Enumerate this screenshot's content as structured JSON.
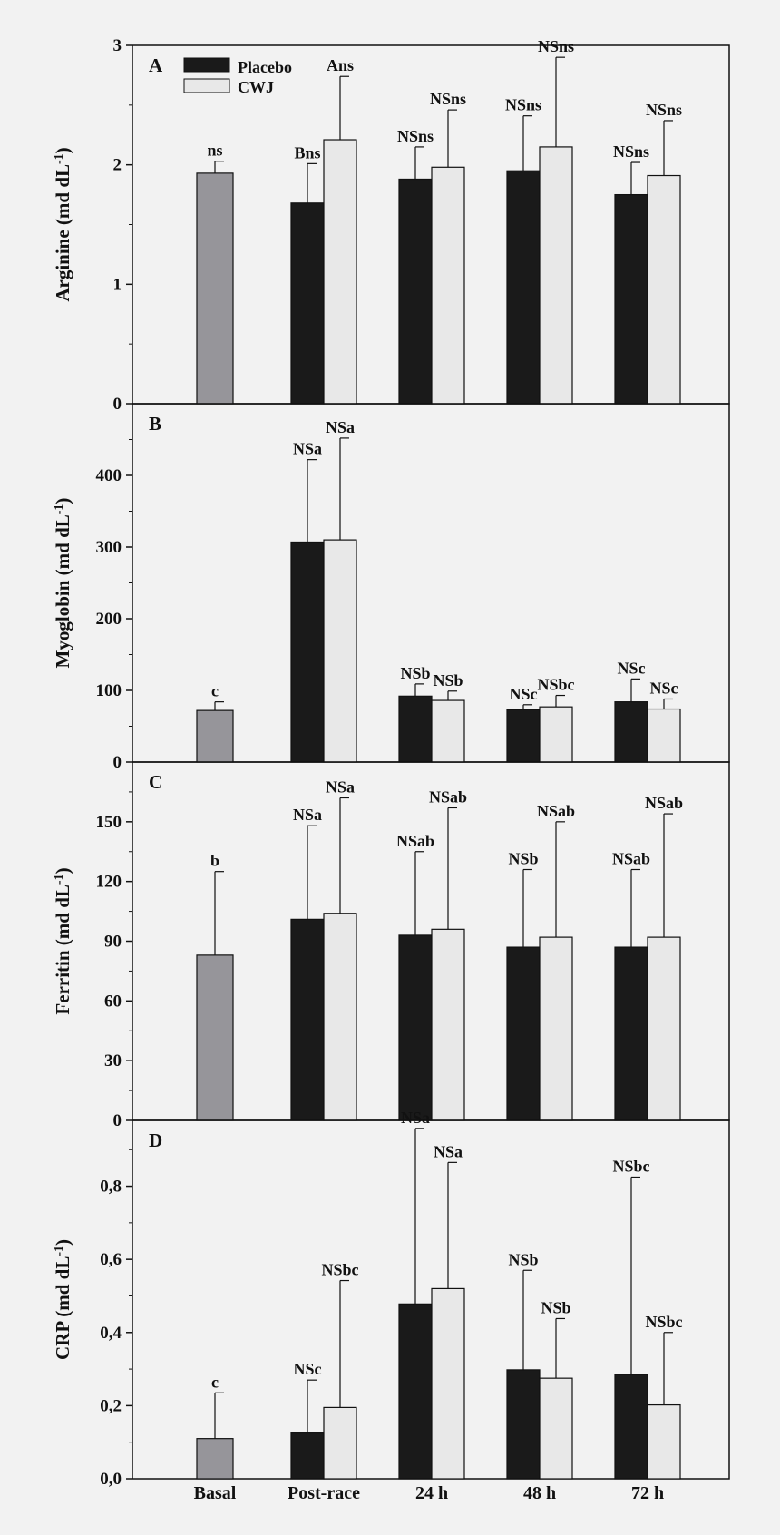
{
  "chart_data": {
    "type": "bar",
    "categories": [
      "Basal",
      "Post-race",
      "24 h",
      "48 h",
      "72 h"
    ],
    "legend": [
      {
        "name": "Placebo",
        "color": "#1a1a1a"
      },
      {
        "name": "CWJ",
        "color": "#e8e8e8"
      }
    ],
    "colors": {
      "basal": "#96959a",
      "placebo": "#1a1a1a",
      "cwj": "#e8e8e8"
    },
    "panels": [
      {
        "letter": "A",
        "ylabel": "Arginine (md dL",
        "ylabel_sup": "-1",
        "ylabel_close": ")",
        "ylim": [
          0,
          3
        ],
        "ticks": [
          0,
          1,
          2,
          3
        ],
        "tick_labels": [
          "0",
          "1",
          "2",
          "3"
        ],
        "basal": {
          "value": 1.93,
          "err": 0.1,
          "label": "ns"
        },
        "placebo": {
          "values": [
            1.68,
            1.88,
            1.95,
            1.75
          ],
          "errors": [
            0.33,
            0.27,
            0.46,
            0.27
          ],
          "labels": [
            "Bns",
            "NSns",
            "NSns",
            "NSns"
          ]
        },
        "cwj": {
          "values": [
            2.21,
            1.98,
            2.15,
            1.91
          ],
          "errors": [
            0.53,
            0.48,
            0.75,
            0.46
          ],
          "labels": [
            "Ans",
            "NSns",
            "NSns",
            "NSns"
          ]
        }
      },
      {
        "letter": "B",
        "ylabel": "Myoglobin (md dL",
        "ylabel_sup": "-1",
        "ylabel_close": ")",
        "ylim": [
          0,
          500
        ],
        "ticks": [
          0,
          100,
          200,
          300,
          400
        ],
        "tick_labels": [
          "0",
          "100",
          "200",
          "300",
          "400"
        ],
        "basal": {
          "value": 72,
          "err": 12,
          "label": "c"
        },
        "placebo": {
          "values": [
            307,
            92,
            73,
            84
          ],
          "errors": [
            115,
            17,
            7,
            32
          ],
          "labels": [
            "NSa",
            "NSb",
            "NSc",
            "NSc"
          ]
        },
        "cwj": {
          "values": [
            310,
            86,
            77,
            74
          ],
          "errors": [
            142,
            13,
            16,
            14
          ],
          "labels": [
            "NSa",
            "NSb",
            "NSbc",
            "NSc"
          ]
        }
      },
      {
        "letter": "C",
        "ylabel": "Ferritin (md dL",
        "ylabel_sup": "-1",
        "ylabel_close": ")",
        "ylim": [
          0,
          180
        ],
        "ticks": [
          0,
          30,
          60,
          90,
          120,
          150
        ],
        "tick_labels": [
          "0",
          "30",
          "60",
          "90",
          "120",
          "150"
        ],
        "basal": {
          "value": 83,
          "err": 42,
          "label": "b"
        },
        "placebo": {
          "values": [
            101,
            93,
            87,
            87
          ],
          "errors": [
            47,
            42,
            39,
            39
          ],
          "labels": [
            "NSa",
            "NSab",
            "NSb",
            "NSab"
          ]
        },
        "cwj": {
          "values": [
            104,
            96,
            92,
            92
          ],
          "errors": [
            58,
            61,
            58,
            62
          ],
          "labels": [
            "NSa",
            "NSab",
            "NSab",
            "NSab"
          ]
        }
      },
      {
        "letter": "D",
        "ylabel": "CRP (md dL",
        "ylabel_sup": "-1",
        "ylabel_close": ")",
        "ylim": [
          0,
          0.98
        ],
        "ticks": [
          0,
          0.2,
          0.4,
          0.6,
          0.8
        ],
        "tick_labels": [
          "0,0",
          "0,2",
          "0,4",
          "0,6",
          "0,8"
        ],
        "basal": {
          "value": 0.11,
          "err": 0.125,
          "label": "c"
        },
        "placebo": {
          "values": [
            0.125,
            0.478,
            0.298,
            0.285
          ],
          "errors": [
            0.145,
            0.48,
            0.272,
            0.54
          ],
          "labels": [
            "NSc",
            "NSa",
            "NSb",
            "NSbc"
          ]
        },
        "cwj": {
          "values": [
            0.195,
            0.52,
            0.275,
            0.202
          ],
          "errors": [
            0.347,
            0.345,
            0.163,
            0.198
          ],
          "labels": [
            "NSbc",
            "NSa",
            "NSb",
            "NSbc"
          ]
        }
      }
    ]
  }
}
